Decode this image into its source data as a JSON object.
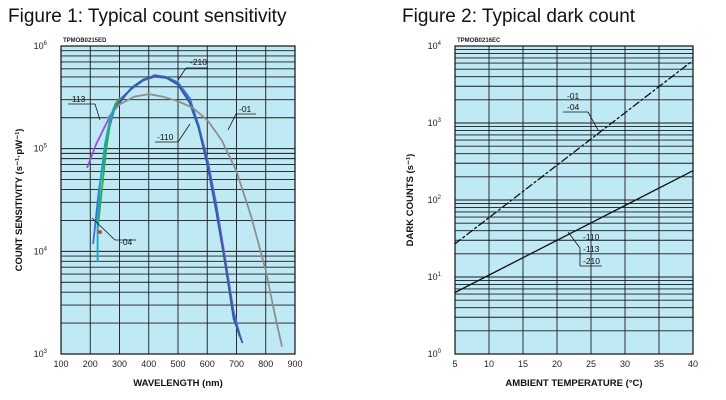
{
  "chart_data": [
    {
      "type": "line",
      "title": "Figure 1: Typical count sensitivity",
      "code": "TPMOB0215ED",
      "xlabel": "WAVELENGTH (nm)",
      "ylabel": "COUNT SENSITIVITY (s⁻¹·pW⁻¹)",
      "xlim": [
        100,
        900
      ],
      "ylim": [
        1000,
        1000000
      ],
      "yscale": "log",
      "background": "#bfe9f4",
      "grid": true,
      "x_ticks": [
        "100",
        "200",
        "300",
        "400",
        "500",
        "600",
        "700",
        "800",
        "900"
      ],
      "y_ticks": [
        {
          "base": "10",
          "exp": "3",
          "value": 1000
        },
        {
          "base": "10",
          "exp": "4",
          "value": 10000
        },
        {
          "base": "10",
          "exp": "5",
          "value": 100000
        },
        {
          "base": "10",
          "exp": "6",
          "value": 1000000
        }
      ],
      "series": [
        {
          "name": "-113",
          "color": "#9a4fd6",
          "points": [
            [
              190,
              66000
            ],
            [
              220,
              110000
            ],
            [
              250,
              165000
            ],
            [
              280,
              240000
            ],
            [
              300,
              300000
            ],
            [
              340,
              380000
            ],
            [
              380,
              460000
            ],
            [
              420,
              500000
            ],
            [
              460,
              490000
            ],
            [
              500,
              430000
            ],
            [
              540,
              300000
            ],
            [
              570,
              170000
            ],
            [
              600,
              80000
            ],
            [
              630,
              30000
            ],
            [
              660,
              9000
            ],
            [
              690,
              2600
            ],
            [
              715,
              1400
            ]
          ]
        },
        {
          "name": "-210",
          "color": "#3a6fd4",
          "points": [
            [
              210,
              12000
            ],
            [
              230,
              40000
            ],
            [
              260,
              140000
            ],
            [
              280,
              230000
            ],
            [
              300,
              290000
            ],
            [
              340,
              380000
            ],
            [
              380,
              460000
            ],
            [
              420,
              520000
            ],
            [
              460,
              500000
            ],
            [
              500,
              440000
            ],
            [
              540,
              310000
            ],
            [
              570,
              170000
            ],
            [
              600,
              75000
            ],
            [
              630,
              28000
            ],
            [
              660,
              8000
            ],
            [
              690,
              2500
            ],
            [
              710,
              1500
            ]
          ]
        },
        {
          "name": "-110",
          "color": "#2e5f9c",
          "points": [
            [
              300,
              280000
            ],
            [
              340,
              390000
            ],
            [
              380,
              470000
            ],
            [
              420,
              510000
            ],
            [
              460,
              490000
            ],
            [
              500,
              420000
            ],
            [
              540,
              280000
            ],
            [
              570,
              160000
            ],
            [
              600,
              70000
            ],
            [
              630,
              25000
            ],
            [
              660,
              8000
            ],
            [
              690,
              2200
            ],
            [
              720,
              1300
            ]
          ]
        },
        {
          "name": "-01",
          "color": "#8e8e8e",
          "points": [
            [
              260,
              200000
            ],
            [
              300,
              270000
            ],
            [
              350,
              320000
            ],
            [
              400,
              340000
            ],
            [
              450,
              320000
            ],
            [
              500,
              290000
            ],
            [
              550,
              250000
            ],
            [
              600,
              190000
            ],
            [
              650,
              120000
            ],
            [
              700,
              60000
            ],
            [
              750,
              22000
            ],
            [
              800,
              6500
            ],
            [
              830,
              2500
            ],
            [
              855,
              1200
            ]
          ]
        },
        {
          "name": "-04",
          "color": "#2fae45",
          "points": [
            [
              225,
              16000
            ],
            [
              240,
              40000
            ],
            [
              255,
              100000
            ],
            [
              270,
              190000
            ],
            [
              285,
              270000
            ],
            [
              300,
              310000
            ]
          ]
        },
        {
          "name": "",
          "color": "#1aa6c8",
          "points": [
            [
              225,
              8000
            ],
            [
              225,
              20000
            ],
            [
              235,
              50000
            ],
            [
              250,
              110000
            ],
            [
              265,
              180000
            ],
            [
              280,
              250000
            ]
          ]
        }
      ]
    },
    {
      "type": "line",
      "title": "Figure 2: Typical dark count",
      "code": "TPMOB0216EC",
      "xlabel": "AMBIENT TEMPERATURE (°C)",
      "ylabel": "DARK COUNTS (s⁻¹)",
      "xlim": [
        5,
        40
      ],
      "ylim": [
        1,
        10000
      ],
      "yscale": "log",
      "background": "#bfe9f4",
      "grid": true,
      "x_ticks": [
        "5",
        "10",
        "15",
        "20",
        "25",
        "30",
        "35",
        "40"
      ],
      "y_ticks": [
        {
          "base": "10",
          "exp": "0",
          "value": 1
        },
        {
          "base": "10",
          "exp": "1",
          "value": 10
        },
        {
          "base": "10",
          "exp": "2",
          "value": 100
        },
        {
          "base": "10",
          "exp": "3",
          "value": 1000
        },
        {
          "base": "10",
          "exp": "4",
          "value": 10000
        }
      ],
      "series": [
        {
          "name": "-01 / -04",
          "color": "#111111",
          "dash": "7,3,2,3",
          "points": [
            [
              5,
              27
            ],
            [
              40,
              6500
            ]
          ]
        },
        {
          "name": "-110 / -113 / -210",
          "color": "#111111",
          "dash": "",
          "points": [
            [
              5,
              6.3
            ],
            [
              40,
              240
            ]
          ]
        }
      ]
    }
  ],
  "annotations_fig1": [
    "-113",
    "-210",
    "-110",
    "-01",
    "-04"
  ],
  "annotations_fig2": [
    "-01",
    "-04",
    "-110",
    "-113",
    "-210"
  ]
}
